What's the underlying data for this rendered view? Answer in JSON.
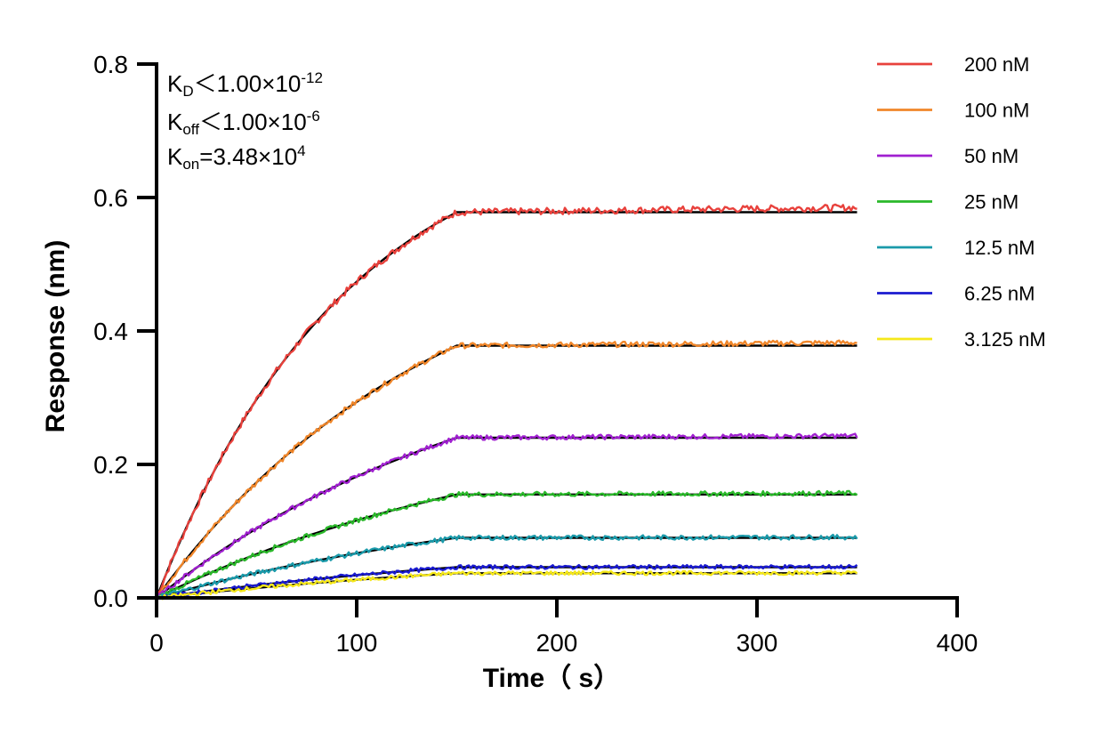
{
  "chart_data": {
    "type": "line",
    "title": "",
    "xlabel": "Time（ s）",
    "ylabel": "Response (nm)",
    "xlim": [
      0,
      400
    ],
    "ylim": [
      0,
      0.8
    ],
    "x_ticks": [
      "0",
      "100",
      "200",
      "300",
      "400"
    ],
    "y_ticks": [
      "0.0",
      "0.2",
      "0.4",
      "0.6",
      "0.8"
    ],
    "grid": false,
    "legend_position": "right",
    "association_end": 150,
    "dissociation_end": 350,
    "annotations": {
      "kd": {
        "symbol": "K",
        "sub": "D",
        "rel": "＜",
        "mantissa": "1.00×10",
        "exp": "-12"
      },
      "koff": {
        "symbol": "K",
        "sub": "off",
        "rel": "＜",
        "mantissa": "1.00×10",
        "exp": "-6"
      },
      "kon": {
        "symbol": "K",
        "sub": "on",
        "rel": "=",
        "mantissa": "3.48×10",
        "exp": "4"
      }
    },
    "fit_color": "#000000",
    "series": [
      {
        "name": "200 nM",
        "color": "#e8413c",
        "plateau": 0.578,
        "k": 0.0105,
        "noise": 0.005
      },
      {
        "name": "100 nM",
        "color": "#f0862a",
        "plateau": 0.378,
        "k": 0.0072,
        "noise": 0.004
      },
      {
        "name": "50 nM",
        "color": "#a020d0",
        "plateau": 0.24,
        "k": 0.0058,
        "noise": 0.0035
      },
      {
        "name": "25 nM",
        "color": "#2ab82a",
        "plateau": 0.155,
        "k": 0.0052,
        "noise": 0.0035
      },
      {
        "name": "12.5 nM",
        "color": "#1a9aaa",
        "plateau": 0.09,
        "k": 0.0048,
        "noise": 0.0035
      },
      {
        "name": "6.25 nM",
        "color": "#1a1ad0",
        "plateau": 0.046,
        "k": 0.0045,
        "noise": 0.003
      },
      {
        "name": "3.125 nM",
        "color": "#f5e81a",
        "plateau": 0.037,
        "k": 0.0042,
        "noise": 0.003
      }
    ]
  }
}
